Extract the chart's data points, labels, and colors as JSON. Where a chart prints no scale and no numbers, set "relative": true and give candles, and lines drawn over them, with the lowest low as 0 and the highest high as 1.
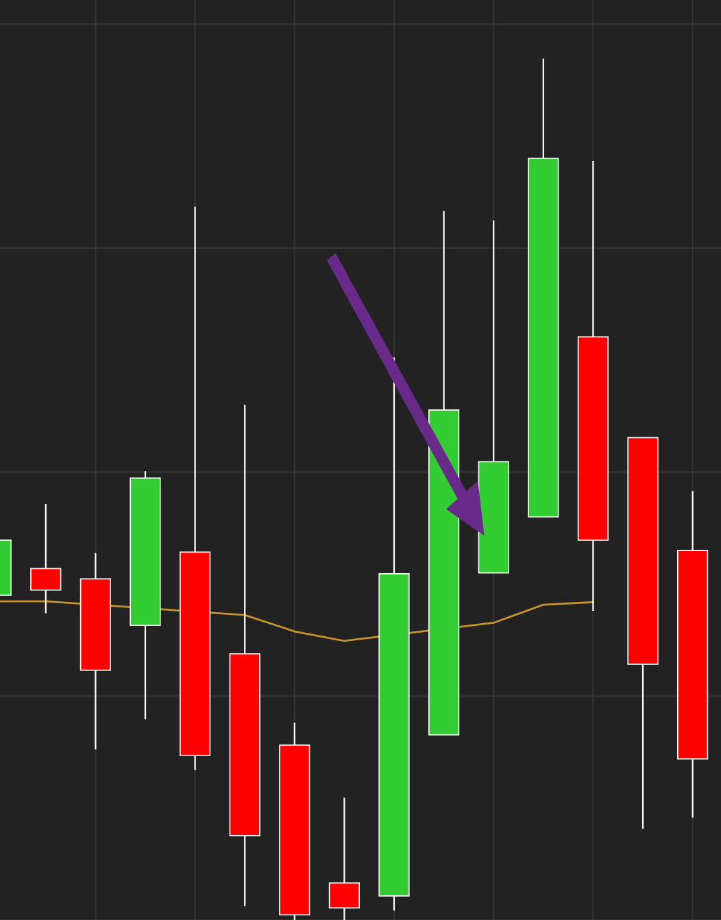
{
  "chart_data": {
    "type": "candlestick",
    "relative": true,
    "grid": true,
    "tick_labels": false,
    "categories": [
      null,
      null,
      null,
      null,
      null,
      null,
      null,
      null,
      null,
      null,
      null,
      null,
      null,
      null,
      null
    ],
    "ohlc": [
      [
        0.377,
        0.441,
        0.377,
        0.441
      ],
      [
        0.408,
        0.483,
        0.356,
        0.383
      ],
      [
        0.396,
        0.426,
        0.198,
        0.29
      ],
      [
        0.342,
        0.521,
        0.233,
        0.513
      ],
      [
        0.427,
        0.828,
        0.174,
        0.191
      ],
      [
        0.309,
        0.598,
        0.016,
        0.098
      ],
      [
        0.203,
        0.229,
        0.0,
        0.006
      ],
      [
        0.043,
        0.142,
        0.0,
        0.014
      ],
      [
        0.028,
        0.653,
        0.011,
        0.402
      ],
      [
        0.215,
        0.823,
        0.215,
        0.592
      ],
      [
        0.403,
        0.812,
        0.403,
        0.532
      ],
      [
        0.468,
        1.0,
        0.468,
        0.884
      ],
      [
        0.677,
        0.881,
        0.359,
        0.441
      ],
      [
        0.56,
        0.56,
        0.106,
        0.297
      ],
      [
        0.429,
        0.498,
        0.119,
        0.187
      ]
    ],
    "colors": [
      "#33cc33",
      "#ff0000",
      "#ff0000",
      "#33cc33",
      "#ff0000",
      "#ff0000",
      "#ff0000",
      "#ff0000",
      "#33cc33",
      "#33cc33",
      "#33cc33",
      "#33cc33",
      "#ff0000",
      "#ff0000",
      "#ff0000"
    ],
    "series": [
      {
        "type": "line",
        "color": "#c8932a",
        "values": [
          0.37,
          0.37,
          null,
          null,
          null,
          0.354,
          0.335,
          0.324,
          null,
          null,
          0.345,
          0.366,
          0.369,
          null,
          null
        ]
      }
    ]
  }
}
